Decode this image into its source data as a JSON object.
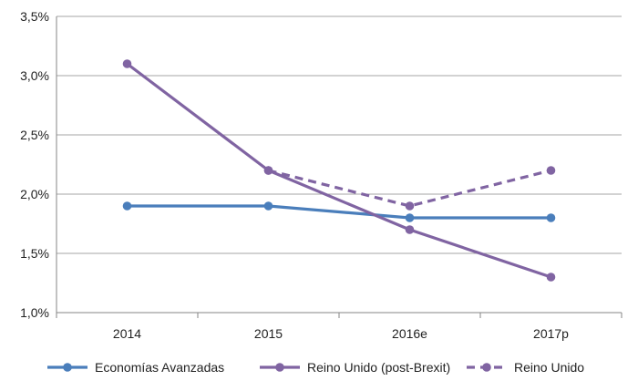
{
  "chart_data": {
    "type": "line",
    "categories": [
      "2014",
      "2015",
      "2016e",
      "2017p"
    ],
    "ylim": [
      1.0,
      3.5
    ],
    "yticks": [
      "1,0%",
      "1,5%",
      "2,0%",
      "2,5%",
      "3,0%",
      "3,5%"
    ],
    "grid": true,
    "legend_position": "bottom",
    "series": [
      {
        "name": "Economías Avanzadas",
        "values": [
          1.9,
          1.9,
          1.8,
          1.8
        ],
        "color": "#4a7ebb",
        "style": "solid"
      },
      {
        "name": "Reino Unido (post-Brexit)",
        "values": [
          3.1,
          2.2,
          1.7,
          1.3
        ],
        "color": "#8064a2",
        "style": "solid"
      },
      {
        "name": "Reino Unido",
        "values": [
          null,
          2.2,
          1.9,
          2.2
        ],
        "color": "#8064a2",
        "style": "dashed"
      }
    ]
  }
}
